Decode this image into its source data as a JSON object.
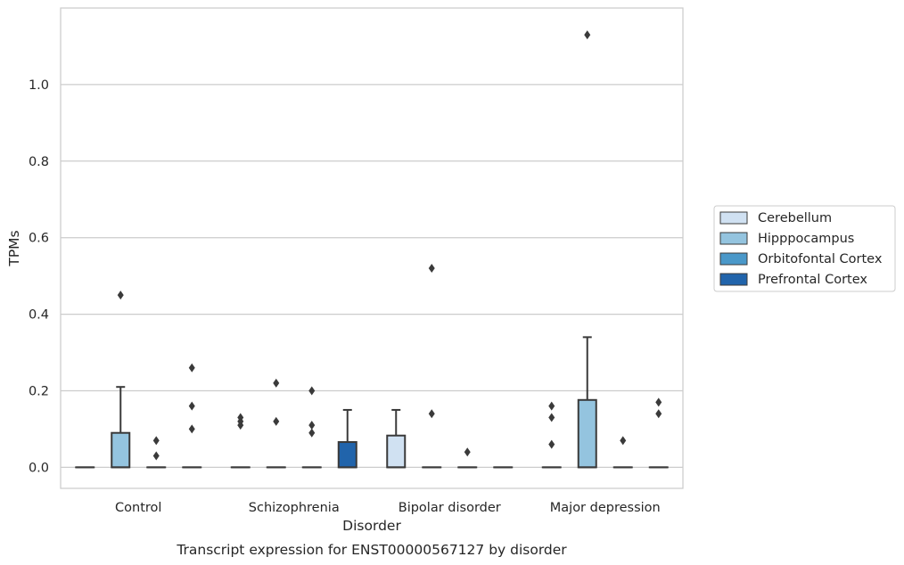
{
  "chart_data": {
    "type": "box",
    "title": "",
    "caption": "Transcript expression for ENST00000567127 by disorder",
    "xlabel": "Disorder",
    "ylabel": "TPMs",
    "ylim": [
      -0.055,
      1.2
    ],
    "yticks": [
      0.0,
      0.2,
      0.4,
      0.6,
      0.8,
      1.0
    ],
    "ytick_labels": [
      "0.0",
      "0.2",
      "0.4",
      "0.6",
      "0.8",
      "1.0"
    ],
    "grid": "horizontal",
    "legend_position": "right",
    "categories": [
      "Control",
      "Schizophrenia",
      "Bipolar disorder",
      "Major depression"
    ],
    "series": [
      {
        "name": "Cerebellum",
        "color": "#d0e1f2",
        "boxes": [
          {
            "q1": 0,
            "median": 0,
            "q3": 0,
            "whisker_low": 0,
            "whisker_high": 0,
            "fliers": []
          },
          {
            "q1": 0,
            "median": 0,
            "q3": 0,
            "whisker_low": 0,
            "whisker_high": 0,
            "fliers": [
              0.11,
              0.12,
              0.13
            ]
          },
          {
            "q1": 0,
            "median": 0,
            "q3": 0.083,
            "whisker_low": 0,
            "whisker_high": 0.15,
            "fliers": []
          },
          {
            "q1": 0,
            "median": 0,
            "q3": 0,
            "whisker_low": 0,
            "whisker_high": 0,
            "fliers": [
              0.06,
              0.13,
              0.16
            ]
          }
        ]
      },
      {
        "name": "Hipppocampus",
        "color": "#94c4df",
        "boxes": [
          {
            "q1": 0,
            "median": 0,
            "q3": 0.09,
            "whisker_low": 0,
            "whisker_high": 0.21,
            "fliers": [
              0.45
            ]
          },
          {
            "q1": 0,
            "median": 0,
            "q3": 0,
            "whisker_low": 0,
            "whisker_high": 0,
            "fliers": [
              0.12,
              0.22
            ]
          },
          {
            "q1": 0,
            "median": 0,
            "q3": 0,
            "whisker_low": 0,
            "whisker_high": 0,
            "fliers": [
              0.14,
              0.52
            ]
          },
          {
            "q1": 0,
            "median": 0,
            "q3": 0.176,
            "whisker_low": 0,
            "whisker_high": 0.34,
            "fliers": [
              1.13
            ]
          }
        ]
      },
      {
        "name": "Orbitofontal Cortex",
        "color": "#4a98c9",
        "boxes": [
          {
            "q1": 0,
            "median": 0,
            "q3": 0,
            "whisker_low": 0,
            "whisker_high": 0,
            "fliers": [
              0.03,
              0.07
            ]
          },
          {
            "q1": 0,
            "median": 0,
            "q3": 0,
            "whisker_low": 0,
            "whisker_high": 0,
            "fliers": [
              0.09,
              0.11,
              0.2
            ]
          },
          {
            "q1": 0,
            "median": 0,
            "q3": 0,
            "whisker_low": 0,
            "whisker_high": 0,
            "fliers": [
              0.04
            ]
          },
          {
            "q1": 0,
            "median": 0,
            "q3": 0,
            "whisker_low": 0,
            "whisker_high": 0,
            "fliers": [
              0.07
            ]
          }
        ]
      },
      {
        "name": "Prefrontal Cortex",
        "color": "#2164ab",
        "boxes": [
          {
            "q1": 0,
            "median": 0,
            "q3": 0,
            "whisker_low": 0,
            "whisker_high": 0,
            "fliers": [
              0.1,
              0.16,
              0.26
            ]
          },
          {
            "q1": 0,
            "median": 0,
            "q3": 0.066,
            "whisker_low": 0,
            "whisker_high": 0.15,
            "fliers": []
          },
          {
            "q1": 0,
            "median": 0,
            "q3": 0,
            "whisker_low": 0,
            "whisker_high": 0,
            "fliers": []
          },
          {
            "q1": 0,
            "median": 0,
            "q3": 0,
            "whisker_low": 0,
            "whisker_high": 0,
            "fliers": [
              0.14,
              0.17
            ]
          }
        ]
      }
    ]
  }
}
